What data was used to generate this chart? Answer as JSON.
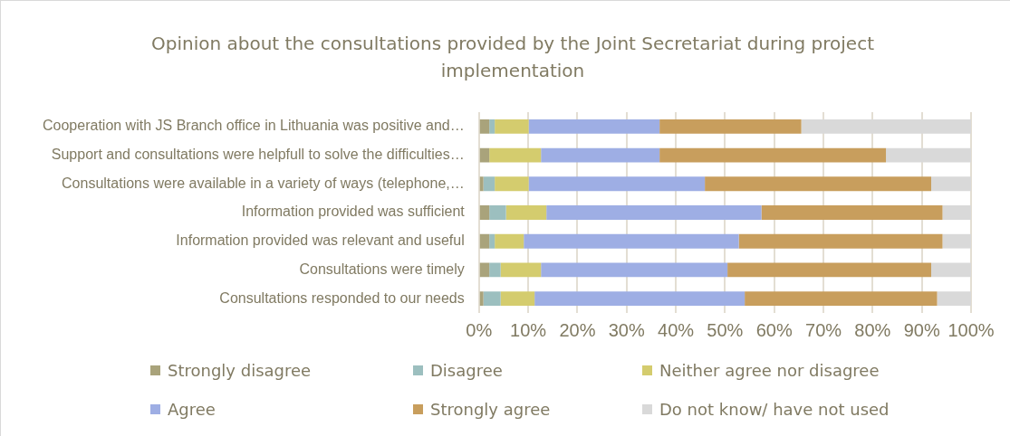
{
  "chart_data": {
    "type": "bar",
    "orientation": "horizontal",
    "stacked": true,
    "title": "Opinion about the consultations provided by the Joint Secretariat during project implementation",
    "categories": [
      "Cooperation with JS Branch office in Lithuania was positive and…",
      "Support and consultations were helpfull to solve the difficulties…",
      "Consultations were available in a variety of ways (telephone,…",
      "Information provided was sufficient",
      "Information provided was relevant and useful",
      "Consultations were timely",
      "Consultations responded to our needs"
    ],
    "series": [
      {
        "name": "Strongly disagree",
        "color": "#a9a37b",
        "values": [
          2.1,
          2.1,
          0.9,
          2.1,
          2.1,
          2.1,
          0.9
        ]
      },
      {
        "name": "Disagree",
        "color": "#9cbfbf",
        "values": [
          1.1,
          0,
          2.3,
          3.4,
          1.1,
          2.3,
          3.5
        ]
      },
      {
        "name": "Neither agree nor disagree",
        "color": "#d4cc6e",
        "values": [
          6.9,
          10.5,
          6.9,
          8.2,
          5.9,
          8.2,
          6.9
        ]
      },
      {
        "name": "Agree",
        "color": "#9eaee4",
        "values": [
          26.6,
          24.1,
          35.8,
          43.7,
          43.7,
          37.9,
          42.7
        ]
      },
      {
        "name": "Strongly agree",
        "color": "#c89e5d",
        "values": [
          28.8,
          46.0,
          46.0,
          36.8,
          41.4,
          41.4,
          39.1
        ]
      },
      {
        "name": "Do not know/ have not used",
        "color": "#d9d9d9",
        "values": [
          34.5,
          17.3,
          8.1,
          5.8,
          5.8,
          8.1,
          6.9
        ]
      }
    ],
    "xlim": [
      0,
      100
    ],
    "xticks": [
      {
        "value": 0,
        "label": "0%"
      },
      {
        "value": 10,
        "label": "10%"
      },
      {
        "value": 20,
        "label": "20%"
      },
      {
        "value": 30,
        "label": "30%"
      },
      {
        "value": 40,
        "label": "40%"
      },
      {
        "value": 50,
        "label": "50%"
      },
      {
        "value": 60,
        "label": "60%"
      },
      {
        "value": 70,
        "label": "70%"
      },
      {
        "value": 80,
        "label": "80%"
      },
      {
        "value": 90,
        "label": "90%"
      },
      {
        "value": 100,
        "label": "100%"
      }
    ],
    "grid": "x",
    "legend": "bottom"
  }
}
